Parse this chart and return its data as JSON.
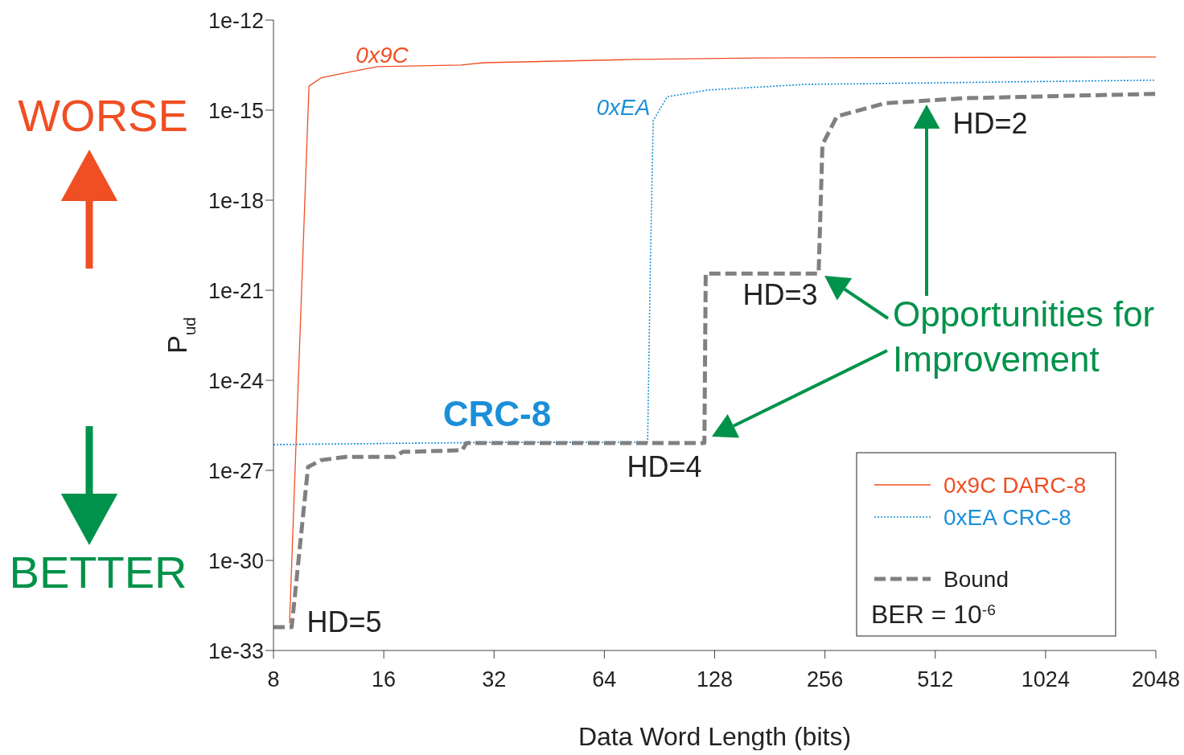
{
  "chart_data": {
    "type": "line",
    "xlabel": "Data Word Length (bits)",
    "ylabel": "P$_{ud}$",
    "log": "xy",
    "grid": false,
    "legend": "bottom right",
    "marker": "none",
    "xlim": [
      8,
      2048
    ],
    "xticks": [
      8,
      16,
      32,
      64,
      128,
      256,
      512,
      1024,
      2048
    ],
    "ylim": [
      1e-33,
      1e-12
    ],
    "yticks": [
      {
        "value": 1e-33,
        "label": "1e-33"
      },
      {
        "value": 1e-30,
        "label": "1e-30"
      },
      {
        "value": 1e-27,
        "label": "1e-27"
      },
      {
        "value": 1e-24,
        "label": "1e-24"
      },
      {
        "value": 1e-21,
        "label": "1e-21"
      },
      {
        "value": 1e-18,
        "label": "1e-18"
      },
      {
        "value": 1e-15,
        "label": "1e-15"
      },
      {
        "value": 1e-12,
        "label": "1e-12"
      }
    ],
    "series": [
      {
        "name": "0x9C DARC-8",
        "color": "#f04e23",
        "line_style": "solid",
        "x": [
          8.85,
          10.0,
          10.8,
          13.3,
          15.4,
          26,
          30,
          78,
          166,
          2048
        ],
        "values": [
          8.1e-33,
          6.3e-15,
          1.2e-14,
          2e-14,
          2.8e-14,
          3.2e-14,
          3.8e-14,
          4.9e-14,
          5.5e-14,
          5.9e-14
        ]
      },
      {
        "name": "0xEA CRC-8",
        "color": "#1a8fd8",
        "line_style": "dotted",
        "x": [
          8,
          12,
          30,
          84,
          85.5,
          87,
          95,
          123,
          225,
          2048
        ],
        "values": [
          7.2e-27,
          7.6e-27,
          8.5e-27,
          8.7e-27,
          1e-20,
          4.5e-16,
          2.8e-15,
          4.7e-15,
          7.2e-15,
          1e-14
        ]
      },
      {
        "name": "Bound",
        "color": "#808080",
        "line_style": "dashed",
        "x": [
          8,
          8.97,
          9.94,
          10.8,
          12.6,
          17.1,
          18,
          26.2,
          26.9,
          120,
          121,
          246,
          252,
          276,
          373,
          617,
          2048
        ],
        "values": [
          6e-33,
          6e-33,
          1.3e-27,
          2.2e-27,
          2.8e-27,
          2.8e-27,
          4.1e-27,
          4.7e-27,
          8.1e-27,
          8.1e-27,
          3.6e-21,
          3.6e-21,
          7.1e-17,
          6.2e-16,
          1.7e-15,
          2.5e-15,
          3.5e-15
        ]
      }
    ],
    "annotations": [
      "0x9C",
      "0xEA",
      "CRC-8",
      "HD=5",
      "HD=4",
      "HD=3",
      "HD=2",
      "Opportunities for Improvement",
      "WORSE",
      "BETTER",
      "BER = 10$^{-6}$"
    ]
  }
}
